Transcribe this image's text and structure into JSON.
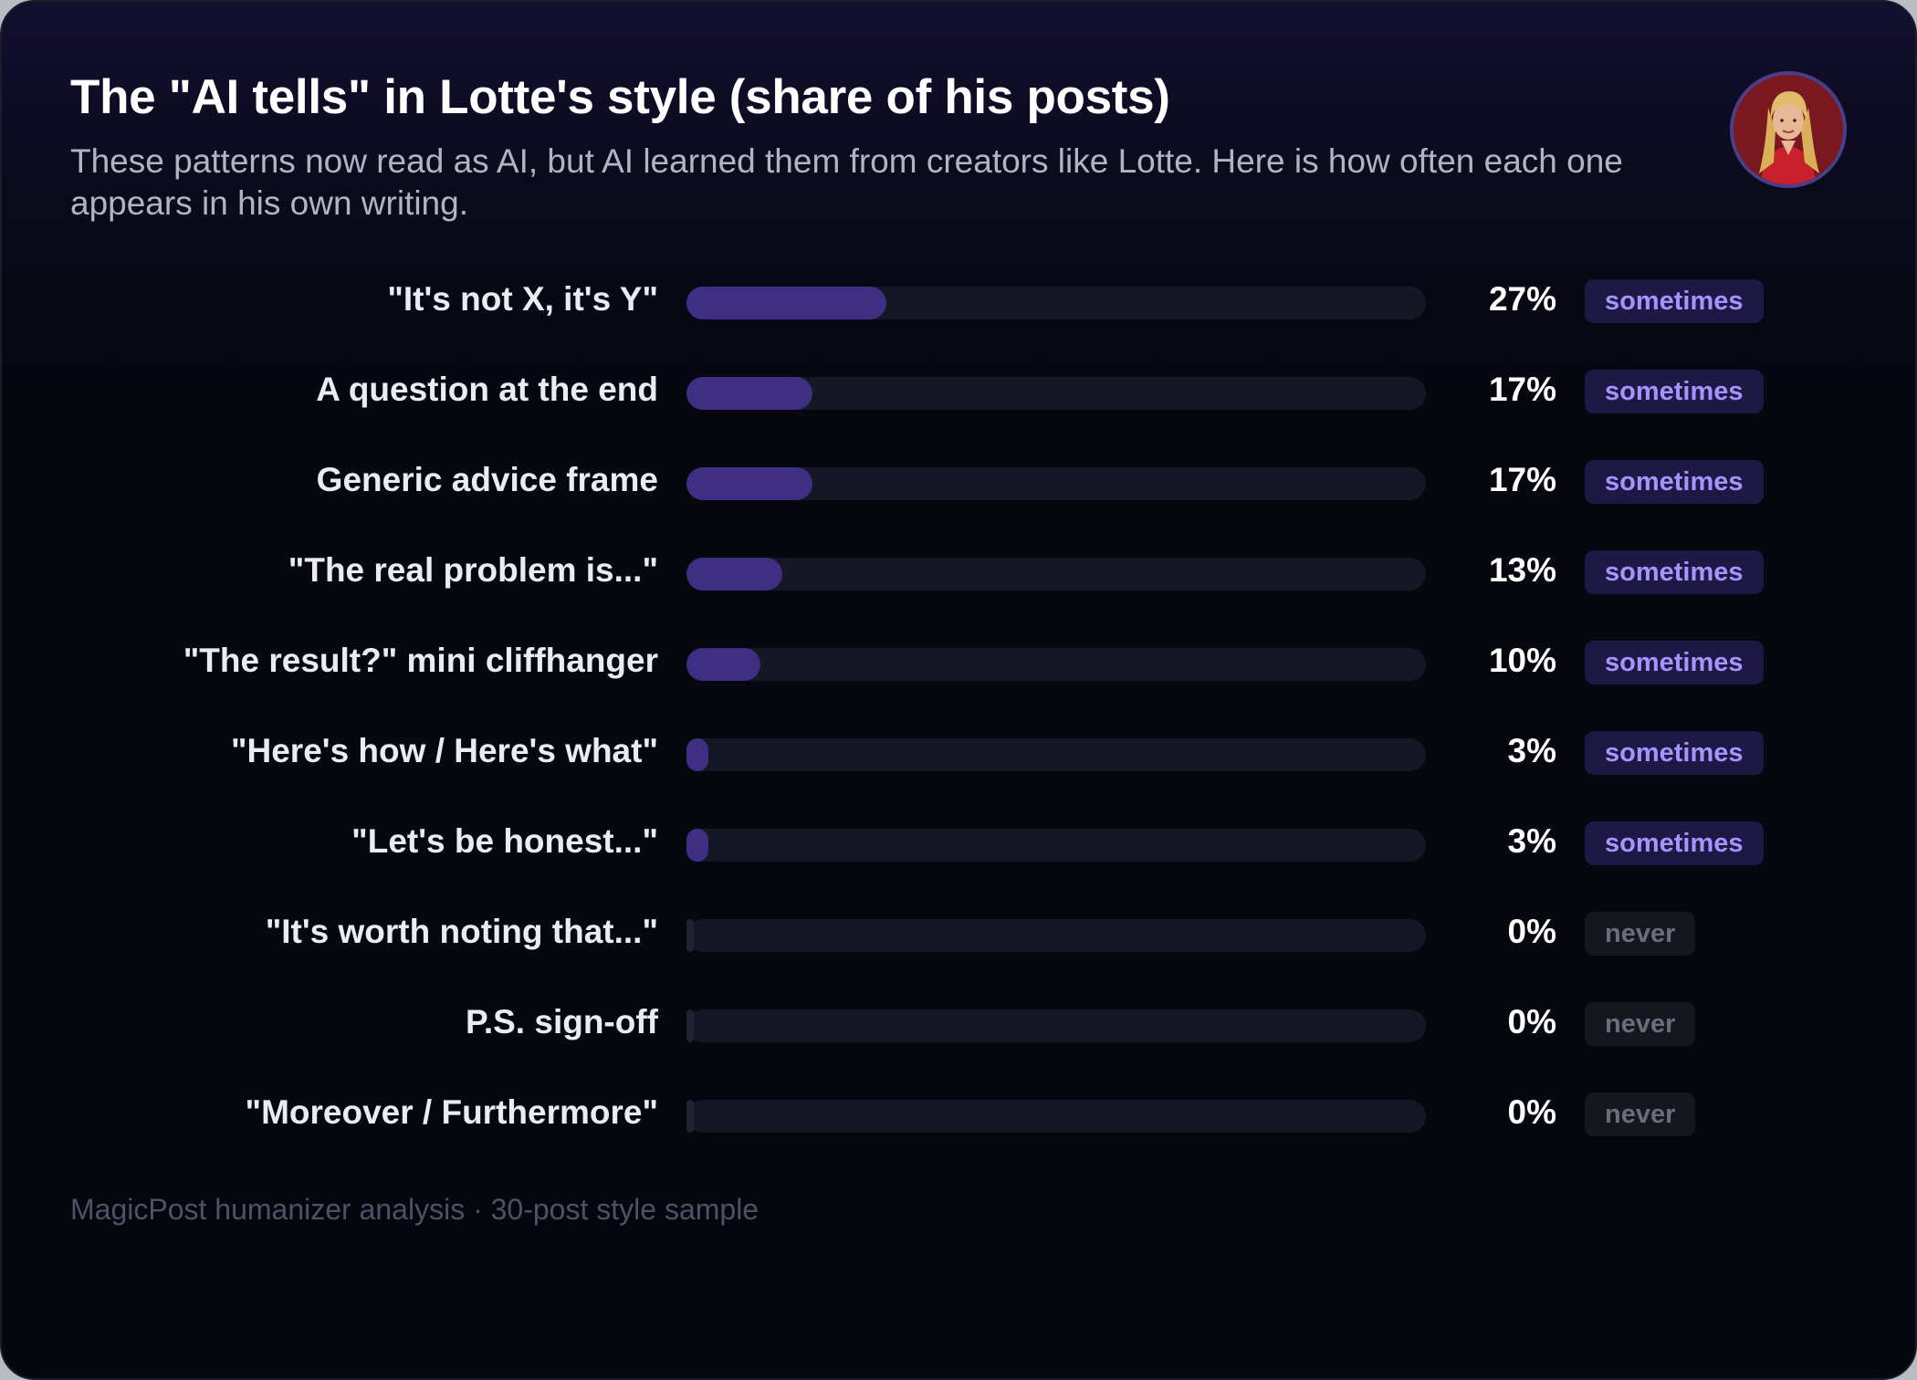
{
  "header": {
    "title": "The \"AI tells\" in Lotte's style (share of his posts)",
    "subtitle": "These patterns now read as AI, but AI learned them from creators like Lotte. Here is how often each one appears in his own writing."
  },
  "avatar": {
    "icon": "profile-photo-icon"
  },
  "colors": {
    "bar_fill": "#3f2f84",
    "bar_zero": "#1f2230",
    "track": "#151824",
    "badge_sometimes_text": "#a594ff",
    "badge_never_text": "#6a6d7c"
  },
  "chart_data": {
    "type": "bar",
    "orientation": "horizontal",
    "categories": [
      "\"It's not X, it's Y\"",
      "A question at the end",
      "Generic advice frame",
      "\"The real problem is...\"",
      "\"The result?\" mini cliffhanger",
      "\"Here's how / Here's what\"",
      "\"Let's be honest...\"",
      "\"It's worth noting that...\"",
      "P.S. sign-off",
      "\"Moreover / Furthermore\""
    ],
    "values": [
      27,
      17,
      17,
      13,
      10,
      3,
      3,
      0,
      0,
      0
    ],
    "value_labels": [
      "27%",
      "17%",
      "17%",
      "13%",
      "10%",
      "3%",
      "3%",
      "0%",
      "0%",
      "0%"
    ],
    "badges": [
      "sometimes",
      "sometimes",
      "sometimes",
      "sometimes",
      "sometimes",
      "sometimes",
      "sometimes",
      "never",
      "never",
      "never"
    ],
    "xlim": [
      0,
      100
    ],
    "grid": false,
    "legend": "none"
  },
  "footer": {
    "source": "MagicPost humanizer analysis · 30-post style sample"
  }
}
